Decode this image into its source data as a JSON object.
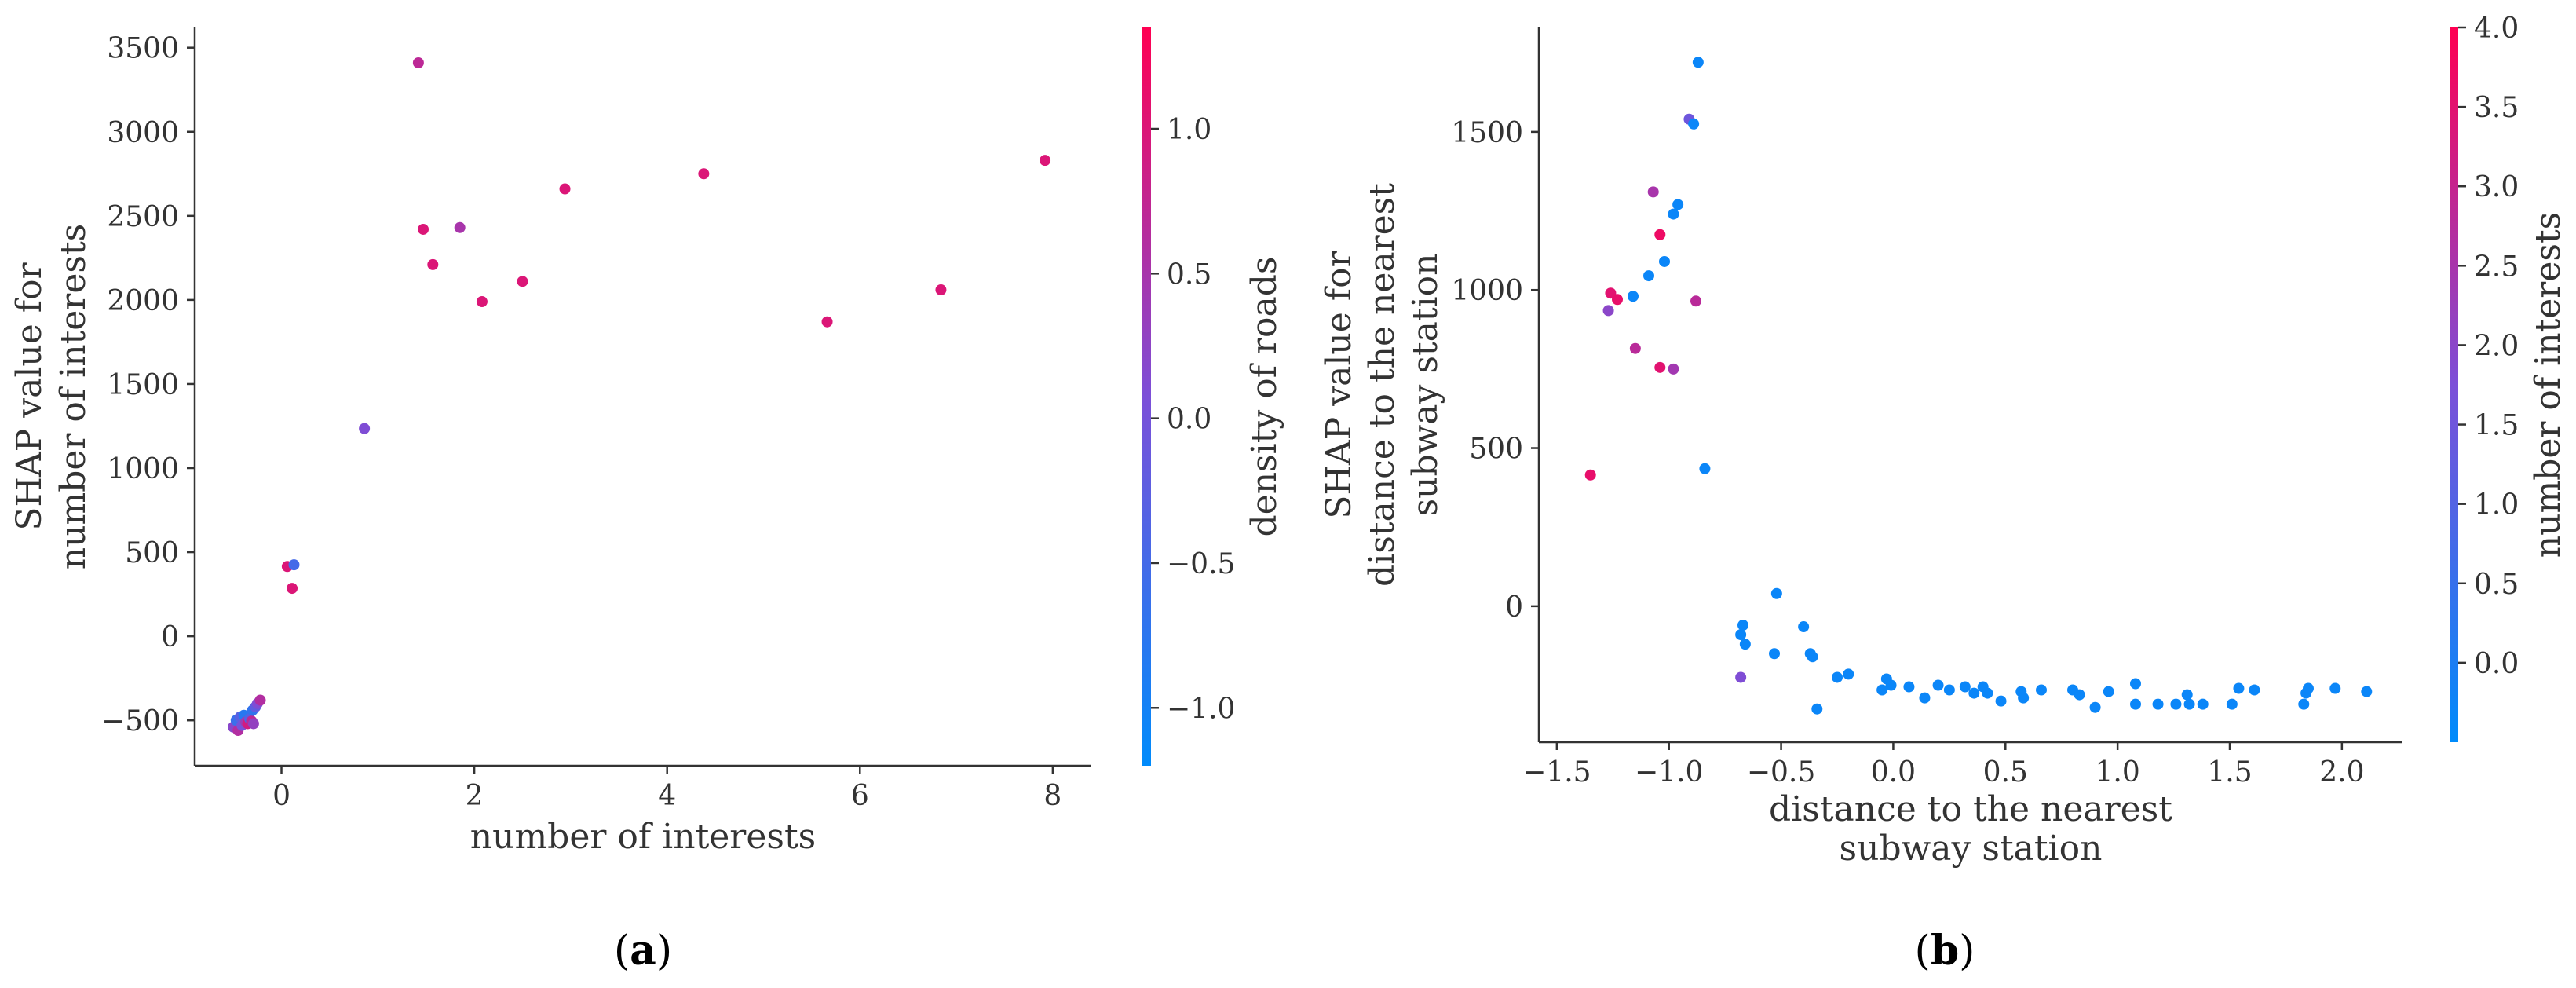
{
  "chart_data": [
    {
      "type": "scatter",
      "panel_label": "(a)",
      "panel_letter": "a",
      "xlabel": "number of interests",
      "ylabel": [
        "SHAP value for",
        "number of interests"
      ],
      "color_label": "density of roads",
      "xlim": [
        -0.9,
        8.4
      ],
      "ylim": [
        -770,
        3620
      ],
      "xticks": [
        0,
        2,
        4,
        6,
        8
      ],
      "yticks": [
        -500,
        0,
        500,
        1000,
        1500,
        2000,
        2500,
        3000,
        3500
      ],
      "xtick_labels": [
        "0",
        "2",
        "4",
        "6",
        "8"
      ],
      "ytick_labels": [
        "−500",
        "0",
        "500",
        "1000",
        "1500",
        "2000",
        "2500",
        "3000",
        "3500"
      ],
      "clim": [
        -1.2,
        1.35
      ],
      "cticks": [
        -1.0,
        -0.5,
        0.0,
        0.5,
        1.0
      ],
      "ctick_labels": [
        "−1.0",
        "−0.5",
        "0.0",
        "0.5",
        "1.0"
      ],
      "points": [
        {
          "x": 1.42,
          "y": 3410,
          "c": 0.7
        },
        {
          "x": 1.47,
          "y": 2420,
          "c": 1.0
        },
        {
          "x": 1.57,
          "y": 2210,
          "c": 1.0
        },
        {
          "x": 1.85,
          "y": 2430,
          "c": 0.5
        },
        {
          "x": 2.08,
          "y": 1990,
          "c": 1.0
        },
        {
          "x": 2.5,
          "y": 2110,
          "c": 1.0
        },
        {
          "x": 2.94,
          "y": 2660,
          "c": 1.0
        },
        {
          "x": 4.38,
          "y": 2750,
          "c": 1.0
        },
        {
          "x": 5.66,
          "y": 1870,
          "c": 1.0
        },
        {
          "x": 6.84,
          "y": 2060,
          "c": 1.0
        },
        {
          "x": 7.92,
          "y": 2830,
          "c": 1.0
        },
        {
          "x": 0.86,
          "y": 1235,
          "c": 0.1
        },
        {
          "x": 0.06,
          "y": 415,
          "c": 1.0
        },
        {
          "x": 0.13,
          "y": 425,
          "c": -0.5
        },
        {
          "x": 0.11,
          "y": 285,
          "c": 1.0
        },
        {
          "x": -0.5,
          "y": -540,
          "c": 0.2
        },
        {
          "x": -0.47,
          "y": -500,
          "c": -0.6
        },
        {
          "x": -0.45,
          "y": -560,
          "c": 0.6
        },
        {
          "x": -0.43,
          "y": -480,
          "c": -0.3
        },
        {
          "x": -0.41,
          "y": -530,
          "c": 0.0
        },
        {
          "x": -0.39,
          "y": -470,
          "c": -0.8
        },
        {
          "x": -0.37,
          "y": -510,
          "c": 0.4
        },
        {
          "x": -0.35,
          "y": -520,
          "c": 0.9
        },
        {
          "x": -0.33,
          "y": -490,
          "c": -0.4
        },
        {
          "x": -0.31,
          "y": -505,
          "c": 0.7
        },
        {
          "x": -0.29,
          "y": -520,
          "c": 0.3
        },
        {
          "x": -0.3,
          "y": -440,
          "c": -0.7
        },
        {
          "x": -0.27,
          "y": -420,
          "c": -0.2
        },
        {
          "x": -0.25,
          "y": -400,
          "c": 0.1
        },
        {
          "x": -0.22,
          "y": -380,
          "c": 0.6
        }
      ]
    },
    {
      "type": "scatter",
      "panel_label": "(b)",
      "panel_letter": "b",
      "xlabel": [
        "distance to the nearest",
        "subway station"
      ],
      "ylabel": [
        "SHAP value for",
        "distance to the nearest",
        "subway station"
      ],
      "color_label": "number of interests",
      "xlim": [
        -1.58,
        2.27
      ],
      "ylim": [
        -430,
        1830
      ],
      "xticks": [
        -1.5,
        -1.0,
        -0.5,
        0.0,
        0.5,
        1.0,
        1.5,
        2.0
      ],
      "yticks": [
        0,
        500,
        1000,
        1500
      ],
      "xtick_labels": [
        "−1.5",
        "−1.0",
        "−0.5",
        "0.0",
        "0.5",
        "1.0",
        "1.5",
        "2.0"
      ],
      "ytick_labels": [
        "0",
        "500",
        "1000",
        "1500"
      ],
      "clim": [
        -0.5,
        4.0
      ],
      "cticks": [
        0.0,
        0.5,
        1.0,
        1.5,
        2.0,
        2.5,
        3.0,
        3.5,
        4.0
      ],
      "ctick_labels": [
        "0.0",
        "0.5",
        "1.0",
        "1.5",
        "2.0",
        "2.5",
        "3.0",
        "3.5",
        "4.0"
      ],
      "points": [
        {
          "x": -0.87,
          "y": 1720,
          "c": -0.3
        },
        {
          "x": -0.91,
          "y": 1540,
          "c": 1.5
        },
        {
          "x": -0.89,
          "y": 1525,
          "c": -0.3
        },
        {
          "x": -1.07,
          "y": 1310,
          "c": 2.5
        },
        {
          "x": -0.96,
          "y": 1270,
          "c": -0.3
        },
        {
          "x": -0.98,
          "y": 1240,
          "c": -0.3
        },
        {
          "x": -1.04,
          "y": 1175,
          "c": 3.7
        },
        {
          "x": -1.02,
          "y": 1090,
          "c": -0.3
        },
        {
          "x": -1.09,
          "y": 1045,
          "c": -0.3
        },
        {
          "x": -1.26,
          "y": 990,
          "c": 3.5
        },
        {
          "x": -1.23,
          "y": 970,
          "c": 3.6
        },
        {
          "x": -1.16,
          "y": 980,
          "c": -0.3
        },
        {
          "x": -1.27,
          "y": 935,
          "c": 2.0
        },
        {
          "x": -0.88,
          "y": 965,
          "c": 2.8
        },
        {
          "x": -1.15,
          "y": 815,
          "c": 2.8
        },
        {
          "x": -1.04,
          "y": 755,
          "c": 3.5
        },
        {
          "x": -0.98,
          "y": 750,
          "c": 2.4
        },
        {
          "x": -0.84,
          "y": 435,
          "c": -0.3
        },
        {
          "x": -1.35,
          "y": 415,
          "c": 3.6
        },
        {
          "x": -0.68,
          "y": -90,
          "c": -0.3
        },
        {
          "x": -0.67,
          "y": -60,
          "c": -0.3
        },
        {
          "x": -0.66,
          "y": -120,
          "c": -0.3
        },
        {
          "x": -0.68,
          "y": -225,
          "c": 1.8
        },
        {
          "x": -0.52,
          "y": 40,
          "c": -0.3
        },
        {
          "x": -0.53,
          "y": -150,
          "c": -0.3
        },
        {
          "x": -0.4,
          "y": -65,
          "c": -0.3
        },
        {
          "x": -0.37,
          "y": -150,
          "c": -0.3
        },
        {
          "x": -0.36,
          "y": -160,
          "c": -0.3
        },
        {
          "x": -0.34,
          "y": -325,
          "c": -0.3
        },
        {
          "x": -0.25,
          "y": -225,
          "c": -0.3
        },
        {
          "x": -0.2,
          "y": -215,
          "c": -0.3
        },
        {
          "x": -0.05,
          "y": -265,
          "c": -0.3
        },
        {
          "x": -0.03,
          "y": -230,
          "c": -0.3
        },
        {
          "x": -0.01,
          "y": -250,
          "c": -0.3
        },
        {
          "x": 0.07,
          "y": -255,
          "c": -0.3
        },
        {
          "x": 0.14,
          "y": -290,
          "c": -0.3
        },
        {
          "x": 0.2,
          "y": -250,
          "c": -0.3
        },
        {
          "x": 0.25,
          "y": -265,
          "c": -0.3
        },
        {
          "x": 0.32,
          "y": -255,
          "c": -0.3
        },
        {
          "x": 0.36,
          "y": -275,
          "c": -0.3
        },
        {
          "x": 0.4,
          "y": -255,
          "c": -0.3
        },
        {
          "x": 0.42,
          "y": -275,
          "c": -0.3
        },
        {
          "x": 0.48,
          "y": -300,
          "c": -0.3
        },
        {
          "x": 0.57,
          "y": -270,
          "c": -0.3
        },
        {
          "x": 0.58,
          "y": -290,
          "c": -0.3
        },
        {
          "x": 0.66,
          "y": -265,
          "c": -0.3
        },
        {
          "x": 0.8,
          "y": -265,
          "c": -0.3
        },
        {
          "x": 0.83,
          "y": -280,
          "c": -0.3
        },
        {
          "x": 0.9,
          "y": -320,
          "c": -0.3
        },
        {
          "x": 0.96,
          "y": -270,
          "c": -0.3
        },
        {
          "x": 1.08,
          "y": -245,
          "c": -0.3
        },
        {
          "x": 1.08,
          "y": -310,
          "c": -0.3
        },
        {
          "x": 1.18,
          "y": -310,
          "c": -0.3
        },
        {
          "x": 1.26,
          "y": -310,
          "c": -0.3
        },
        {
          "x": 1.31,
          "y": -280,
          "c": -0.3
        },
        {
          "x": 1.32,
          "y": -310,
          "c": -0.3
        },
        {
          "x": 1.38,
          "y": -310,
          "c": -0.3
        },
        {
          "x": 1.51,
          "y": -310,
          "c": -0.3
        },
        {
          "x": 1.54,
          "y": -260,
          "c": -0.3
        },
        {
          "x": 1.61,
          "y": -265,
          "c": -0.3
        },
        {
          "x": 1.83,
          "y": -310,
          "c": -0.3
        },
        {
          "x": 1.84,
          "y": -275,
          "c": -0.3
        },
        {
          "x": 1.85,
          "y": -260,
          "c": -0.3
        },
        {
          "x": 1.97,
          "y": -260,
          "c": -0.3
        },
        {
          "x": 2.11,
          "y": -270,
          "c": -0.3
        }
      ]
    }
  ]
}
